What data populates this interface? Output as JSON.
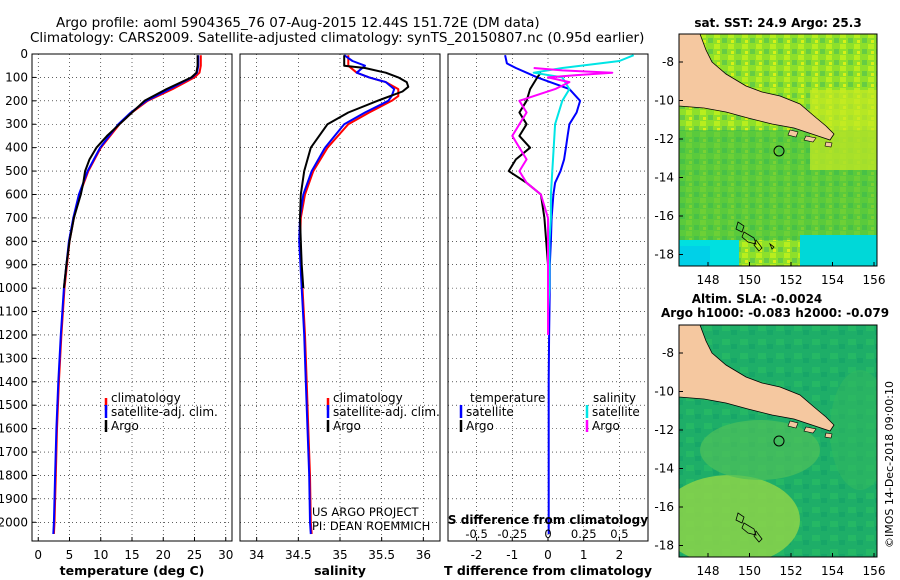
{
  "header": {
    "line1": "Argo profile: aoml 5904365_76 07-Aug-2015 12.44S 151.72E (DM data)",
    "line2": "Climatology: CARS2009. Satellite-adjusted climatology: synTS_20150807.nc (0.95d earlier)"
  },
  "chart_data": [
    {
      "type": "line",
      "id": "temperature",
      "xlabel": "temperature (deg C)",
      "xlim": [
        -1,
        31
      ],
      "xticks": [
        0,
        5,
        10,
        15,
        20,
        25,
        30
      ],
      "ylim": [
        2080,
        0
      ],
      "yticks": [
        0,
        100,
        200,
        300,
        400,
        500,
        600,
        700,
        800,
        900,
        1000,
        1100,
        1200,
        1300,
        1400,
        1500,
        1600,
        1700,
        1800,
        1900,
        2000
      ],
      "legend": [
        "climatology",
        "satellite-adj. clim.",
        "Argo"
      ],
      "series": [
        {
          "name": "climatology",
          "color": "#ff0000",
          "y": [
            5,
            50,
            80,
            100,
            150,
            200,
            250,
            300,
            400,
            500,
            600,
            700,
            800,
            900,
            1000,
            1200,
            1400,
            1600,
            1800,
            2000,
            2050
          ],
          "values": [
            26.0,
            26.0,
            25.8,
            25.0,
            21.5,
            17.5,
            15.0,
            13.0,
            10.0,
            8.0,
            6.6,
            5.7,
            5.0,
            4.6,
            4.2,
            3.7,
            3.3,
            3.0,
            2.8,
            2.6,
            2.5
          ]
        },
        {
          "name": "satellite-adj. clim.",
          "color": "#0000ff",
          "y": [
            5,
            50,
            80,
            100,
            150,
            200,
            250,
            300,
            400,
            500,
            600,
            700,
            800,
            900,
            1000,
            1200,
            1400,
            1600,
            1800,
            2000,
            2050
          ],
          "values": [
            25.6,
            25.6,
            25.4,
            24.6,
            21.0,
            17.3,
            14.8,
            12.8,
            9.9,
            7.9,
            6.5,
            5.6,
            4.9,
            4.5,
            4.1,
            3.6,
            3.2,
            2.9,
            2.7,
            2.5,
            2.4
          ]
        },
        {
          "name": "Argo",
          "color": "#000000",
          "y": [
            5,
            50,
            80,
            100,
            150,
            200,
            250,
            300,
            350,
            400,
            450,
            500,
            550,
            600,
            700,
            800,
            900,
            1000
          ],
          "values": [
            25.5,
            25.5,
            25.3,
            24.5,
            20.5,
            17.0,
            15.0,
            13.0,
            11.0,
            9.3,
            8.2,
            7.5,
            7.2,
            6.8,
            5.7,
            5.0,
            4.5,
            4.1
          ]
        }
      ],
      "credit": []
    },
    {
      "type": "line",
      "id": "salinity",
      "xlabel": "salinity",
      "xlim": [
        33.8,
        36.2
      ],
      "xticks": [
        34,
        34.5,
        35,
        35.5,
        36
      ],
      "ylim": [
        2080,
        0
      ],
      "legend": [
        "climatology",
        "satellite-adj. clim.",
        "Argo"
      ],
      "series": [
        {
          "name": "climatology",
          "color": "#ff0000",
          "y": [
            5,
            50,
            80,
            100,
            120,
            150,
            180,
            200,
            250,
            300,
            400,
            500,
            600,
            700,
            800,
            1000,
            1200,
            1400,
            1600,
            1800,
            2000,
            2050
          ],
          "values": [
            35.1,
            35.1,
            35.2,
            35.35,
            35.55,
            35.7,
            35.7,
            35.62,
            35.35,
            35.1,
            34.85,
            34.68,
            34.58,
            34.53,
            34.52,
            34.55,
            34.58,
            34.6,
            34.62,
            34.64,
            34.65,
            34.66
          ]
        },
        {
          "name": "satellite-adj. clim.",
          "color": "#0000ff",
          "y": [
            5,
            30,
            50,
            80,
            100,
            120,
            150,
            180,
            200,
            250,
            300,
            400,
            500,
            600,
            700,
            800,
            1000,
            1200,
            1400,
            1600,
            1800,
            2000,
            2050
          ],
          "values": [
            35.05,
            35.15,
            35.3,
            35.2,
            35.35,
            35.55,
            35.65,
            35.62,
            35.58,
            35.3,
            35.05,
            34.82,
            34.66,
            34.56,
            34.52,
            34.51,
            34.54,
            34.57,
            34.59,
            34.61,
            34.63,
            34.64,
            34.65
          ]
        },
        {
          "name": "Argo",
          "color": "#000000",
          "y": [
            5,
            50,
            60,
            80,
            100,
            120,
            140,
            160,
            200,
            250,
            300,
            400,
            500,
            600,
            700,
            800,
            900,
            1000
          ],
          "values": [
            35.05,
            35.05,
            35.3,
            35.55,
            35.7,
            35.8,
            35.82,
            35.75,
            35.45,
            35.1,
            34.85,
            34.65,
            34.57,
            34.53,
            34.52,
            34.53,
            34.54,
            34.56
          ]
        }
      ],
      "credit": [
        "US ARGO PROJECT",
        "PI: DEAN ROEMMICH"
      ]
    },
    {
      "type": "line",
      "id": "difference",
      "xlabel": "T difference from climatology",
      "xlim": [
        -2.8,
        2.8
      ],
      "xticks": [
        -2,
        -1,
        0,
        1,
        2
      ],
      "top_axis_label": "S difference from climatology",
      "top_ticks": [
        "-0.5",
        "-0.25",
        "0",
        "0.25",
        "0.5"
      ],
      "ylim": [
        2080,
        0
      ],
      "legend_left_title": "temperature",
      "legend_right_title": "salinity",
      "legend_left": [
        "satellite",
        "Argo"
      ],
      "legend_right": [
        "satellite",
        "Argo"
      ],
      "series": [
        {
          "name": "T satellite",
          "color": "#0000ff",
          "y": [
            5,
            40,
            60,
            80,
            100,
            150,
            200,
            250,
            300,
            350,
            400,
            450,
            500,
            550,
            600,
            700,
            800,
            900,
            1000,
            1200,
            1400,
            1600,
            1800,
            2000,
            2050
          ],
          "values": [
            -1.2,
            -1.15,
            -0.9,
            -0.6,
            -0.3,
            0.6,
            0.9,
            0.8,
            0.6,
            0.55,
            0.5,
            0.45,
            0.35,
            0.2,
            0.15,
            0.1,
            0.08,
            0.05,
            0.05,
            0.03,
            0.02,
            0.02,
            0.02,
            0.02,
            0.02
          ]
        },
        {
          "name": "T Argo",
          "color": "#000000",
          "y": [
            80,
            100,
            150,
            200,
            250,
            300,
            350,
            400,
            450,
            500,
            550,
            600,
            700,
            800,
            900,
            1000
          ],
          "values": [
            -0.2,
            -0.3,
            -0.5,
            -0.6,
            -0.8,
            -0.6,
            -0.8,
            -0.5,
            -0.9,
            -1.1,
            -0.6,
            -0.2,
            -0.1,
            -0.05,
            0.0,
            0.0
          ]
        },
        {
          "name": "S satellite",
          "color": "#00e5e5",
          "y": [
            5,
            30,
            60,
            80,
            100,
            150,
            200,
            300,
            400,
            500,
            600,
            700,
            800,
            900,
            1000,
            1100,
            1200
          ],
          "values": [
            0.6,
            0.5,
            0.1,
            -0.1,
            0.1,
            0.15,
            0.1,
            0.05,
            0.04,
            0.03,
            0.02,
            0.02,
            0.01,
            0.01,
            0.01,
            0.0,
            0.0
          ]
        },
        {
          "name": "S Argo",
          "color": "#ff00ff",
          "y": [
            60,
            70,
            80,
            90,
            100,
            120,
            150,
            200,
            250,
            300,
            350,
            400,
            450,
            500,
            550,
            600,
            700,
            800,
            900,
            1000,
            1100,
            1200
          ],
          "values": [
            -0.1,
            0.1,
            0.45,
            0.2,
            0.0,
            0.15,
            0.05,
            -0.2,
            -0.15,
            -0.2,
            -0.25,
            -0.2,
            -0.15,
            -0.2,
            -0.15,
            -0.05,
            0.0,
            0.0,
            0.0,
            0.0,
            0.0,
            0.0
          ]
        }
      ],
      "credit": []
    }
  ],
  "maps": {
    "top_title": "sat. SST: 24.9 Argo: 25.3",
    "bottom_title_1": "Altim. SLA: -0.0024",
    "bottom_title_2": "Argo h1000: -0.083 h2000: -0.079",
    "lat_ticks": [
      "-8",
      "-10",
      "-12",
      "-14",
      "-16",
      "-18"
    ],
    "lon_ticks": [
      "148",
      "150",
      "152",
      "154",
      "156"
    ],
    "credit": "©IMOS 14-Dec-2018 09:00:10"
  },
  "colors": {
    "climatology": "#ff0000",
    "satellite": "#0000ff",
    "argo": "#000000",
    "sat_salinity": "#00e5e5",
    "argo_salinity": "#ff00ff",
    "land": "#f5c8a0",
    "sea": "#22b26a"
  }
}
